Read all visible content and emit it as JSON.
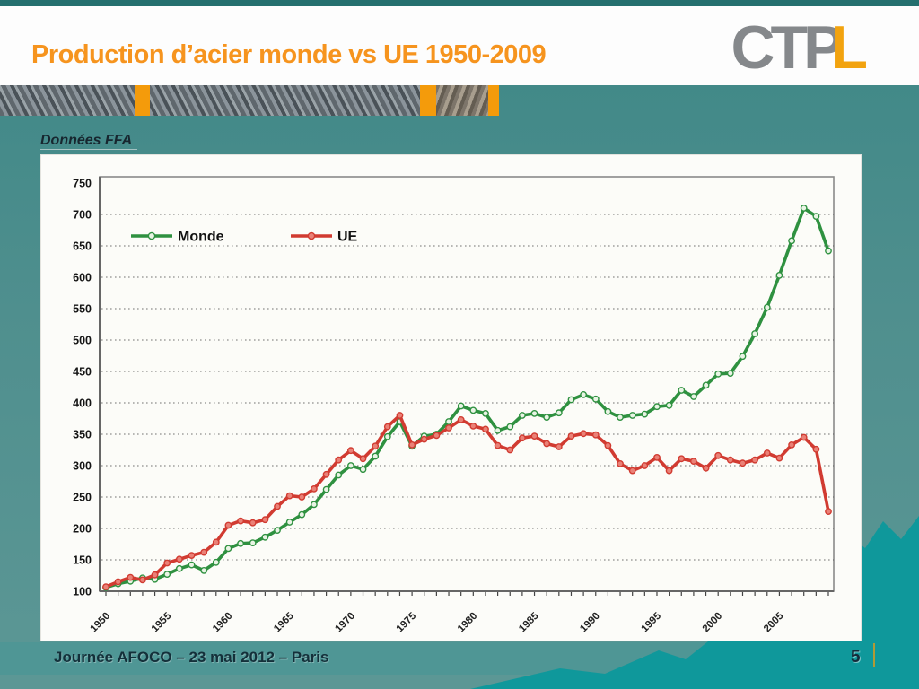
{
  "slide": {
    "title": "Production d’acier monde vs UE 1950-2009",
    "logo_gray": "CTP",
    "logo_orange": "L",
    "source_note": "Données FFA",
    "footer_text": "Journée AFOCO – 23 mai 2012 – Paris",
    "page_number": "5"
  },
  "colors": {
    "title_orange": "#f6941e",
    "logo_gray": "#85888b",
    "logo_orange": "#f2a30f",
    "slide_teal": "#4f8f8e",
    "mountain_teal": "#0f989b",
    "monde_green": "#2f9140",
    "ue_red": "#d13b31"
  },
  "chart_data": {
    "type": "line",
    "title": "",
    "xlabel": "",
    "ylabel": "",
    "ylim": [
      100,
      750
    ],
    "y_ticks": [
      100,
      150,
      200,
      250,
      300,
      350,
      400,
      450,
      500,
      550,
      600,
      650,
      700,
      750
    ],
    "x_tick_labels": [
      "1950",
      "1955",
      "1960",
      "1965",
      "1970",
      "1975",
      "1980",
      "1985",
      "1990",
      "1995",
      "2000",
      "2005"
    ],
    "grid": "dotted-horizontal",
    "legend_position": "inside-top-left",
    "x": [
      1950,
      1951,
      1952,
      1953,
      1954,
      1955,
      1956,
      1957,
      1958,
      1959,
      1960,
      1961,
      1962,
      1963,
      1964,
      1965,
      1966,
      1967,
      1968,
      1969,
      1970,
      1971,
      1972,
      1973,
      1974,
      1975,
      1976,
      1977,
      1978,
      1979,
      1980,
      1981,
      1982,
      1983,
      1984,
      1985,
      1986,
      1987,
      1988,
      1989,
      1990,
      1991,
      1992,
      1993,
      1994,
      1995,
      1996,
      1997,
      1998,
      1999,
      2000,
      2001,
      2002,
      2003,
      2004,
      2005,
      2006,
      2007,
      2008,
      2009
    ],
    "series": [
      {
        "name": "Monde",
        "color": "#2f9140",
        "marker_fill": "#e9f4e5",
        "values": [
          106,
          112,
          116,
          121,
          119,
          127,
          136,
          142,
          133,
          146,
          168,
          176,
          177,
          186,
          197,
          210,
          222,
          238,
          262,
          285,
          300,
          294,
          315,
          346,
          370,
          331,
          347,
          350,
          370,
          395,
          388,
          383,
          356,
          362,
          380,
          383,
          377,
          384,
          405,
          413,
          406,
          386,
          377,
          380,
          382,
          394,
          396,
          420,
          410,
          428,
          446,
          447,
          474,
          510,
          552,
          603,
          658,
          710,
          697,
          642
        ]
      },
      {
        "name": "UE",
        "color": "#d13b31",
        "marker_fill": "#ea8177",
        "values": [
          107,
          115,
          122,
          118,
          126,
          145,
          151,
          157,
          162,
          178,
          205,
          212,
          209,
          214,
          235,
          252,
          250,
          263,
          286,
          309,
          324,
          311,
          331,
          362,
          380,
          333,
          342,
          348,
          360,
          373,
          363,
          358,
          332,
          325,
          344,
          347,
          335,
          330,
          347,
          351,
          349,
          332,
          303,
          292,
          300,
          313,
          292,
          311,
          307,
          296,
          316,
          309,
          304,
          309,
          320,
          312,
          333,
          345,
          326,
          227
        ]
      }
    ]
  }
}
